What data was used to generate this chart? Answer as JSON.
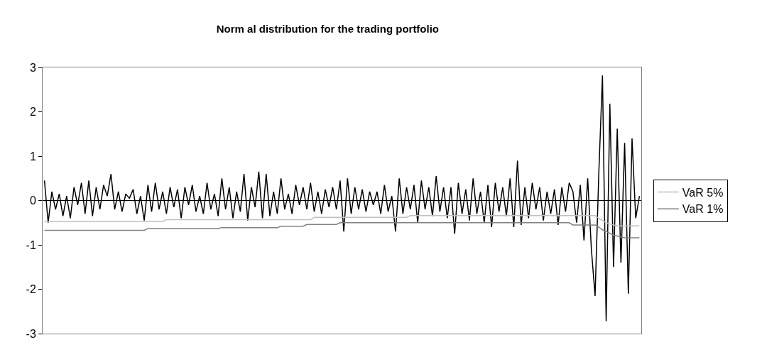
{
  "chart_data": {
    "type": "line",
    "title": "Norm al distribution for the trading portfolio",
    "categories": [
      null,
      null,
      null,
      null,
      null,
      null,
      null,
      null,
      null,
      null,
      null,
      null,
      null,
      null,
      null,
      null,
      null,
      null,
      null,
      null,
      null,
      null,
      null,
      null,
      null,
      null,
      null,
      null,
      null,
      null,
      null,
      null,
      null,
      null,
      null,
      null,
      null,
      null,
      null,
      null,
      null,
      null,
      null,
      null,
      null,
      null,
      null,
      null,
      null,
      null,
      null,
      null,
      null,
      null,
      null,
      null,
      null,
      null,
      null,
      null,
      null,
      null,
      null,
      null,
      null,
      null,
      null,
      null,
      null,
      null,
      null,
      null,
      null,
      null,
      null,
      null,
      null,
      null,
      null,
      null,
      null,
      null,
      null,
      null,
      null,
      null,
      null,
      null,
      null,
      null,
      null,
      null,
      null,
      null,
      null,
      null,
      null,
      null,
      null,
      null,
      null,
      null,
      null,
      null,
      null,
      null,
      null,
      null,
      null,
      null,
      null,
      null,
      null,
      null,
      null,
      null,
      null,
      null,
      null,
      null,
      null,
      null,
      null,
      null,
      null,
      null,
      null,
      null,
      null,
      null,
      null,
      null,
      null,
      null,
      null,
      null,
      null,
      null,
      null,
      null,
      null,
      null,
      null,
      null,
      null,
      null,
      null,
      null,
      null,
      null,
      null,
      null,
      null,
      null,
      null,
      null,
      null,
      null,
      null,
      null,
      null,
      null
    ],
    "series": [
      {
        "color": "#000000",
        "values": [
          0.45,
          -0.5,
          0.2,
          -0.2,
          0.15,
          -0.35,
          0.1,
          -0.4,
          0.3,
          -0.1,
          0.4,
          -0.3,
          0.45,
          -0.35,
          0.3,
          -0.2,
          0.35,
          0.1,
          0.6,
          -0.2,
          0.2,
          -0.25,
          0.15,
          0.05,
          0.25,
          -0.3,
          0.1,
          -0.45,
          0.35,
          -0.25,
          0.4,
          -0.2,
          0.2,
          -0.3,
          0.3,
          -0.15,
          0.25,
          -0.4,
          0.3,
          -0.1,
          0.35,
          -0.25,
          0.1,
          -0.3,
          0.4,
          -0.2,
          0.15,
          -0.35,
          0.5,
          -0.2,
          0.3,
          -0.4,
          0.2,
          -0.25,
          0.6,
          -0.45,
          0.3,
          -0.15,
          0.65,
          -0.4,
          0.6,
          -0.35,
          0.2,
          -0.3,
          0.5,
          -0.2,
          0.15,
          -0.3,
          0.35,
          -0.1,
          0.3,
          -0.2,
          0.4,
          -0.25,
          0.2,
          -0.3,
          0.25,
          -0.15,
          0.3,
          -0.2,
          0.45,
          -0.7,
          0.5,
          -0.3,
          0.3,
          -0.2,
          0.25,
          -0.25,
          0.2,
          -0.1,
          0.2,
          -0.3,
          0.35,
          -0.25,
          0.1,
          -0.7,
          0.5,
          -0.3,
          0.3,
          -0.2,
          0.35,
          -0.5,
          0.45,
          -0.2,
          0.3,
          -0.35,
          0.55,
          -0.25,
          0.3,
          -0.4,
          0.3,
          -0.75,
          0.4,
          -0.3,
          0.25,
          -0.45,
          0.5,
          -0.3,
          0.2,
          -0.5,
          0.35,
          -0.6,
          0.4,
          -0.25,
          0.3,
          -0.35,
          0.5,
          -0.6,
          0.9,
          -0.55,
          0.3,
          -0.4,
          0.4,
          -0.2,
          0.3,
          -0.45,
          0.2,
          -0.3,
          0.25,
          -0.55,
          0.3,
          -0.25,
          0.4,
          0.2,
          -0.5,
          0.35,
          -0.9,
          0.5,
          -1.1,
          -2.15,
          0.6,
          2.82,
          -2.72,
          2.18,
          -1.5,
          1.62,
          -1.4,
          1.3,
          -2.1,
          1.4,
          -0.4,
          0.1
        ]
      },
      {
        "name": "VaR 5%",
        "color": "#c0c0c0",
        "values": [
          -0.47,
          -0.47,
          -0.47,
          -0.47,
          -0.47,
          -0.47,
          -0.47,
          -0.47,
          -0.47,
          -0.47,
          -0.47,
          -0.47,
          -0.47,
          -0.47,
          -0.47,
          -0.47,
          -0.47,
          -0.47,
          -0.47,
          -0.47,
          -0.47,
          -0.47,
          -0.47,
          -0.47,
          -0.47,
          -0.47,
          -0.47,
          -0.47,
          -0.47,
          -0.47,
          -0.47,
          -0.47,
          -0.47,
          -0.43,
          -0.43,
          -0.43,
          -0.43,
          -0.43,
          -0.43,
          -0.43,
          -0.43,
          -0.43,
          -0.43,
          -0.43,
          -0.43,
          -0.43,
          -0.43,
          -0.43,
          -0.43,
          -0.43,
          -0.43,
          -0.43,
          -0.43,
          -0.43,
          -0.43,
          -0.43,
          -0.43,
          -0.43,
          -0.43,
          -0.43,
          -0.43,
          -0.43,
          -0.43,
          -0.43,
          -0.43,
          -0.43,
          -0.43,
          -0.43,
          -0.43,
          -0.43,
          -0.43,
          -0.43,
          -0.43,
          -0.38,
          -0.38,
          -0.38,
          -0.38,
          -0.38,
          -0.38,
          -0.38,
          -0.38,
          -0.38,
          -0.38,
          -0.38,
          -0.38,
          -0.38,
          -0.38,
          -0.38,
          -0.38,
          -0.38,
          -0.38,
          -0.38,
          -0.38,
          -0.38,
          -0.38,
          -0.38,
          -0.38,
          -0.38,
          -0.38,
          -0.34,
          -0.34,
          -0.34,
          -0.34,
          -0.34,
          -0.34,
          -0.34,
          -0.34,
          -0.34,
          -0.34,
          -0.34,
          -0.34,
          -0.34,
          -0.34,
          -0.34,
          -0.34,
          -0.34,
          -0.34,
          -0.34,
          -0.34,
          -0.34,
          -0.34,
          -0.34,
          -0.34,
          -0.34,
          -0.34,
          -0.34,
          -0.34,
          -0.34,
          -0.34,
          -0.34,
          -0.34,
          -0.34,
          -0.34,
          -0.34,
          -0.34,
          -0.34,
          -0.34,
          -0.34,
          -0.34,
          -0.34,
          -0.34,
          -0.34,
          -0.34,
          -0.34,
          -0.34,
          -0.34,
          -0.34,
          -0.34,
          -0.34,
          -0.34,
          -0.4,
          -0.45,
          -0.5,
          -0.53,
          -0.55,
          -0.57,
          -0.57,
          -0.57,
          -0.57,
          -0.57,
          -0.57,
          -0.57
        ]
      },
      {
        "name": "VaR 1%",
        "color": "#808080",
        "values": [
          -0.67,
          -0.67,
          -0.67,
          -0.67,
          -0.67,
          -0.67,
          -0.67,
          -0.67,
          -0.67,
          -0.67,
          -0.67,
          -0.67,
          -0.67,
          -0.67,
          -0.67,
          -0.67,
          -0.67,
          -0.67,
          -0.67,
          -0.67,
          -0.67,
          -0.67,
          -0.67,
          -0.67,
          -0.67,
          -0.67,
          -0.67,
          -0.67,
          -0.63,
          -0.63,
          -0.63,
          -0.63,
          -0.63,
          -0.63,
          -0.63,
          -0.63,
          -0.63,
          -0.63,
          -0.63,
          -0.63,
          -0.63,
          -0.63,
          -0.63,
          -0.63,
          -0.63,
          -0.63,
          -0.63,
          -0.63,
          -0.61,
          -0.61,
          -0.61,
          -0.61,
          -0.61,
          -0.61,
          -0.61,
          -0.61,
          -0.61,
          -0.61,
          -0.61,
          -0.61,
          -0.61,
          -0.61,
          -0.61,
          -0.61,
          -0.58,
          -0.58,
          -0.58,
          -0.58,
          -0.58,
          -0.58,
          -0.58,
          -0.54,
          -0.54,
          -0.54,
          -0.54,
          -0.54,
          -0.54,
          -0.54,
          -0.54,
          -0.54,
          -0.5,
          -0.5,
          -0.5,
          -0.5,
          -0.5,
          -0.5,
          -0.5,
          -0.5,
          -0.5,
          -0.5,
          -0.5,
          -0.5,
          -0.5,
          -0.5,
          -0.5,
          -0.5,
          -0.5,
          -0.5,
          -0.5,
          -0.5,
          -0.5,
          -0.5,
          -0.5,
          -0.5,
          -0.5,
          -0.5,
          -0.5,
          -0.5,
          -0.5,
          -0.5,
          -0.5,
          -0.5,
          -0.5,
          -0.5,
          -0.5,
          -0.5,
          -0.5,
          -0.5,
          -0.5,
          -0.5,
          -0.5,
          -0.5,
          -0.5,
          -0.5,
          -0.5,
          -0.5,
          -0.5,
          -0.5,
          -0.5,
          -0.5,
          -0.5,
          -0.5,
          -0.5,
          -0.5,
          -0.5,
          -0.5,
          -0.5,
          -0.5,
          -0.5,
          -0.5,
          -0.5,
          -0.5,
          -0.5,
          -0.55,
          -0.55,
          -0.55,
          -0.55,
          -0.55,
          -0.55,
          -0.55,
          -0.6,
          -0.66,
          -0.7,
          -0.74,
          -0.78,
          -0.8,
          -0.82,
          -0.84,
          -0.84,
          -0.84,
          -0.84,
          -0.84
        ]
      }
    ],
    "ylim": [
      -3,
      3
    ],
    "yticks": [
      -3,
      -2,
      -1,
      0,
      1,
      2,
      3
    ],
    "ref_lines": [
      {
        "axis": "y",
        "value": 0,
        "color": "#000000",
        "line_style": "solid"
      }
    ],
    "tick_labels": "y",
    "grid": false,
    "legend": "right",
    "marker": "none",
    "line_style": "solid"
  }
}
